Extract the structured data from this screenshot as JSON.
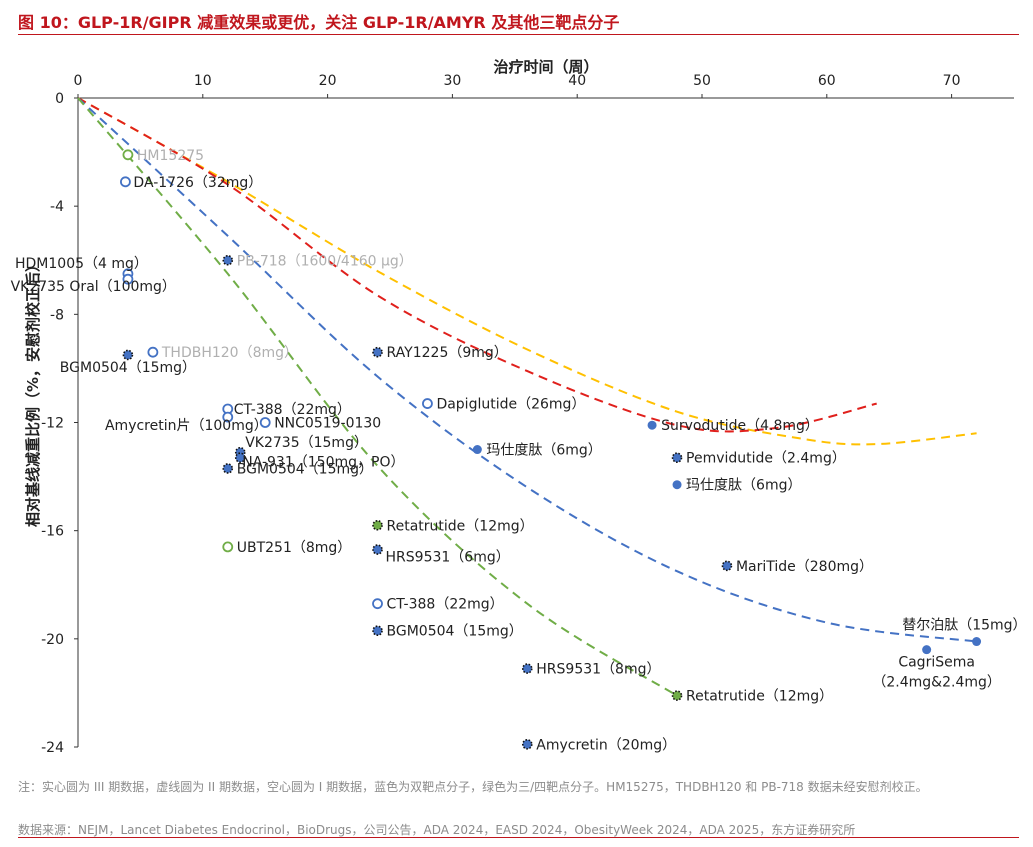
{
  "header": {
    "title": "图 10：GLP-1R/GIPR 减重效果或更优，关注 GLP-1R/AMYR 及其他三靶点分子"
  },
  "footer": {
    "note": "注：实心圆为 III 期数据，虚线圆为 II 期数据，空心圆为 I 期数据，蓝色为双靶点分子，绿色为三/四靶点分子。HM15275，THDBH120 和 PB-718 数据未经安慰剂校正。",
    "source": "数据来源：NEJM，Lancet Diabetes Endocrinol，BioDrugs，公司公告，ADA 2024，EASD 2024，ObesityWeek 2024，ADA 2025，东方证券研究所"
  },
  "colors": {
    "brand_red": "#c0161d",
    "dual_target_blue": "#4472c4",
    "triple_target_green": "#70ad47",
    "curve_red": "#e0201c",
    "curve_yellow": "#ffc000",
    "label_gray": "#b0b0b0"
  },
  "chart_data": {
    "type": "scatter",
    "xlabel": "治疗时间（周）",
    "ylabel": "相对基线减重比例（%，安慰剂校正后）",
    "xlim": [
      0,
      75
    ],
    "ylim": [
      -24,
      0
    ],
    "x_ticks": [
      0,
      10,
      20,
      30,
      40,
      50,
      60,
      70
    ],
    "y_ticks": [
      0,
      -4,
      -8,
      -12,
      -16,
      -20,
      -24
    ],
    "x_axis_position": "top",
    "grid": false,
    "legend": "none",
    "points": [
      {
        "label": "HM15275",
        "x": 4,
        "y": -2.1,
        "color": "green",
        "style": "hollow",
        "muted": true
      },
      {
        "label": "DA-1726（32mg）",
        "x": 3.8,
        "y": -3.1,
        "color": "blue",
        "style": "hollow"
      },
      {
        "label": "PB-718（1600/4160 μg）",
        "x": 12,
        "y": -6,
        "color": "blue",
        "style": "dotted",
        "muted": true
      },
      {
        "label": "HDM1005（4 mg）",
        "x": 4,
        "y": -6.5,
        "color": "blue",
        "style": "hollow"
      },
      {
        "label": "VK2735 Oral（100mg）",
        "x": 4,
        "y": -6.7,
        "color": "blue",
        "style": "hollow"
      },
      {
        "label": "THDBH120（8mg）",
        "x": 6,
        "y": -9.4,
        "color": "blue",
        "style": "hollow",
        "muted": true
      },
      {
        "label": "BGM0504（15mg）",
        "x": 4,
        "y": -9.5,
        "color": "blue",
        "style": "dotted"
      },
      {
        "label": "RAY1225（9mg）",
        "x": 24,
        "y": -9.4,
        "color": "blue",
        "style": "dotted"
      },
      {
        "label": "CT-388（22mg）",
        "x": 12,
        "y": -11.5,
        "color": "blue",
        "style": "hollow"
      },
      {
        "label": "Amycretin片（100mg）",
        "x": 12,
        "y": -11.8,
        "color": "blue",
        "style": "hollow"
      },
      {
        "label": "NNC0519-0130",
        "x": 15,
        "y": -12,
        "color": "blue",
        "style": "hollow"
      },
      {
        "label": "Dapiglutide（26mg）",
        "x": 28,
        "y": -11.3,
        "color": "blue",
        "style": "hollow"
      },
      {
        "label": "Survodutide（4.8mg）",
        "x": 46,
        "y": -12.1,
        "color": "blue",
        "style": "solid"
      },
      {
        "label": "VK2735（15mg）",
        "x": 13,
        "y": -13.1,
        "color": "blue",
        "style": "dotted"
      },
      {
        "label": "NA-931（150mg，PO）",
        "x": 13,
        "y": -13.3,
        "color": "blue",
        "style": "dotted"
      },
      {
        "label": "BGM0504（15mg）",
        "x": 12,
        "y": -13.7,
        "color": "blue",
        "style": "dotted"
      },
      {
        "label": "玛仕度肽（6mg）",
        "x": 32,
        "y": -13,
        "color": "blue",
        "style": "solid"
      },
      {
        "label": "Pemvidutide（2.4mg）",
        "x": 48,
        "y": -13.3,
        "color": "blue",
        "style": "dotted"
      },
      {
        "label": "玛仕度肽（6mg）",
        "x": 48,
        "y": -14.3,
        "color": "blue",
        "style": "solid"
      },
      {
        "label": "Retatrutide（12mg）",
        "x": 24,
        "y": -15.8,
        "color": "green",
        "style": "dotted"
      },
      {
        "label": "UBT251（8mg）",
        "x": 12,
        "y": -16.6,
        "color": "green",
        "style": "hollow"
      },
      {
        "label": "HRS9531（6mg）",
        "x": 24,
        "y": -16.7,
        "color": "blue",
        "style": "dotted"
      },
      {
        "label": "MariTide（280mg）",
        "x": 52,
        "y": -17.3,
        "color": "blue",
        "style": "dotted"
      },
      {
        "label": "CT-388（22mg）",
        "x": 24,
        "y": -18.7,
        "color": "blue",
        "style": "hollow"
      },
      {
        "label": "BGM0504（15mg）",
        "x": 24,
        "y": -19.7,
        "color": "blue",
        "style": "dotted"
      },
      {
        "label": "替尔泊肽（15mg）",
        "x": 72,
        "y": -20.1,
        "color": "blue",
        "style": "solid"
      },
      {
        "label": "CagriSema",
        "label2": "（2.4mg&2.4mg）",
        "x": 68,
        "y": -20.4,
        "color": "blue",
        "style": "solid"
      },
      {
        "label": "HRS9531（8mg）",
        "x": 36,
        "y": -21.1,
        "color": "blue",
        "style": "dotted"
      },
      {
        "label": "Retatrutide（12mg）",
        "x": 48,
        "y": -22.1,
        "color": "green",
        "style": "dotted"
      },
      {
        "label": "Amycretin（20mg）",
        "x": 36,
        "y": -23.9,
        "color": "blue",
        "style": "dotted"
      }
    ],
    "trend_lines": [
      {
        "color": "yellow",
        "x_range": [
          0,
          72
        ],
        "points": [
          [
            0,
            0
          ],
          [
            12,
            -3.1
          ],
          [
            24,
            -6.4
          ],
          [
            36,
            -9.3
          ],
          [
            48,
            -11.6
          ],
          [
            58,
            -12.6
          ],
          [
            64,
            -12.8
          ],
          [
            72,
            -12.4
          ]
        ]
      },
      {
        "color": "red",
        "x_range": [
          0,
          64
        ],
        "points": [
          [
            0,
            0
          ],
          [
            12,
            -3.2
          ],
          [
            24,
            -7.3
          ],
          [
            36,
            -10.1
          ],
          [
            48,
            -12.1
          ],
          [
            56,
            -12.2
          ],
          [
            64,
            -11.3
          ]
        ]
      },
      {
        "color": "blue",
        "x_range": [
          0,
          72
        ],
        "points": [
          [
            0,
            0
          ],
          [
            12,
            -5.1
          ],
          [
            24,
            -10.3
          ],
          [
            36,
            -14.4
          ],
          [
            48,
            -17.5
          ],
          [
            60,
            -19.4
          ],
          [
            72,
            -20.1
          ]
        ]
      },
      {
        "color": "green",
        "x_range": [
          0,
          48
        ],
        "points": [
          [
            0,
            0
          ],
          [
            12,
            -6.5
          ],
          [
            24,
            -13.6
          ],
          [
            36,
            -18.7
          ],
          [
            48,
            -22.1
          ]
        ]
      }
    ]
  }
}
